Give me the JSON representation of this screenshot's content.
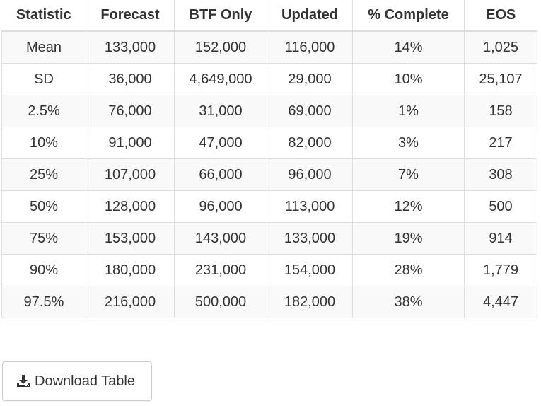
{
  "table": {
    "headers": [
      "Statistic",
      "Forecast",
      "BTF Only",
      "Updated",
      "% Complete",
      "EOS"
    ],
    "rows": [
      [
        "Mean",
        "133,000",
        "152,000",
        "116,000",
        "14%",
        "1,025"
      ],
      [
        "SD",
        "36,000",
        "4,649,000",
        "29,000",
        "10%",
        "25,107"
      ],
      [
        "2.5%",
        "76,000",
        "31,000",
        "69,000",
        "1%",
        "158"
      ],
      [
        "10%",
        "91,000",
        "47,000",
        "82,000",
        "3%",
        "217"
      ],
      [
        "25%",
        "107,000",
        "66,000",
        "96,000",
        "7%",
        "308"
      ],
      [
        "50%",
        "128,000",
        "96,000",
        "113,000",
        "12%",
        "500"
      ],
      [
        "75%",
        "153,000",
        "143,000",
        "133,000",
        "19%",
        "914"
      ],
      [
        "90%",
        "180,000",
        "231,000",
        "154,000",
        "28%",
        "1,779"
      ],
      [
        "97.5%",
        "216,000",
        "500,000",
        "182,000",
        "38%",
        "4,447"
      ]
    ]
  },
  "download": {
    "label": "Download Table",
    "icon": "download-icon"
  }
}
